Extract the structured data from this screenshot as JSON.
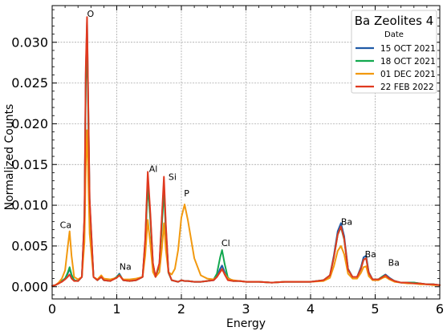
{
  "chart_data": {
    "type": "line",
    "legend": {
      "title": "Ba Zeolites 4",
      "subtitle": "Date",
      "position": "top-right"
    },
    "xlabel": "Energy",
    "ylabel": "Normalized Counts",
    "xlim": [
      0,
      6
    ],
    "ylim": [
      -0.0015,
      0.0345
    ],
    "grid": true,
    "x_ticks": [
      "0",
      "1",
      "2",
      "3",
      "4",
      "5",
      "6"
    ],
    "y_ticks": [
      "0.000",
      "0.005",
      "0.010",
      "0.015",
      "0.020",
      "0.025",
      "0.030"
    ],
    "annotations": [
      {
        "text": "O",
        "x": 0.54,
        "y": 0.0331
      },
      {
        "text": "Ca",
        "x": 0.12,
        "y": 0.0072
      },
      {
        "text": "Na",
        "x": 1.04,
        "y": 0.0021
      },
      {
        "text": "Al",
        "x": 1.5,
        "y": 0.0141
      },
      {
        "text": "Si",
        "x": 1.8,
        "y": 0.0131
      },
      {
        "text": "P",
        "x": 2.04,
        "y": 0.0111
      },
      {
        "text": "Cl",
        "x": 2.62,
        "y": 0.005
      },
      {
        "text": "Ba",
        "x": 4.47,
        "y": 0.0076
      },
      {
        "text": "Ba",
        "x": 4.84,
        "y": 0.0036
      },
      {
        "text": "Ba",
        "x": 5.2,
        "y": 0.0026
      }
    ],
    "series": [
      {
        "name": "15 OCT 2021",
        "color": "#1f5aa6",
        "x": [
          0.0,
          0.05,
          0.1,
          0.15,
          0.2,
          0.24,
          0.27,
          0.3,
          0.34,
          0.4,
          0.46,
          0.5,
          0.52,
          0.54,
          0.58,
          0.64,
          0.7,
          0.76,
          0.8,
          0.9,
          1.0,
          1.04,
          1.1,
          1.2,
          1.3,
          1.4,
          1.44,
          1.48,
          1.52,
          1.56,
          1.6,
          1.66,
          1.7,
          1.73,
          1.76,
          1.8,
          1.85,
          1.9,
          1.95,
          2.0,
          2.05,
          2.1,
          2.2,
          2.3,
          2.4,
          2.5,
          2.55,
          2.6,
          2.63,
          2.67,
          2.72,
          2.8,
          2.9,
          3.0,
          3.2,
          3.4,
          3.6,
          3.8,
          4.0,
          4.2,
          4.3,
          4.36,
          4.42,
          4.47,
          4.52,
          4.58,
          4.65,
          4.72,
          4.78,
          4.82,
          4.86,
          4.9,
          4.96,
          5.05,
          5.12,
          5.16,
          5.22,
          5.3,
          5.4,
          5.5,
          5.6,
          5.7,
          5.8,
          5.9,
          6.0
        ],
        "values": [
          0.0001,
          0.0002,
          0.0004,
          0.0007,
          0.001,
          0.0016,
          0.0022,
          0.0014,
          0.0008,
          0.0007,
          0.0012,
          0.0085,
          0.026,
          0.0325,
          0.0105,
          0.0012,
          0.0008,
          0.0012,
          0.0008,
          0.0007,
          0.0012,
          0.0016,
          0.0008,
          0.0007,
          0.0008,
          0.0012,
          0.0055,
          0.0132,
          0.0085,
          0.0028,
          0.0012,
          0.0028,
          0.0085,
          0.0125,
          0.0072,
          0.0018,
          0.0008,
          0.0007,
          0.0006,
          0.0008,
          0.0007,
          0.0007,
          0.0006,
          0.0006,
          0.0007,
          0.0008,
          0.0012,
          0.0022,
          0.0026,
          0.0018,
          0.0009,
          0.0007,
          0.0007,
          0.0006,
          0.0006,
          0.0005,
          0.0006,
          0.0006,
          0.0006,
          0.0008,
          0.0014,
          0.0038,
          0.0068,
          0.0078,
          0.0062,
          0.0022,
          0.0012,
          0.0012,
          0.0024,
          0.0036,
          0.0038,
          0.0018,
          0.0009,
          0.0009,
          0.0013,
          0.0015,
          0.0011,
          0.0007,
          0.0005,
          0.0005,
          0.0005,
          0.0004,
          0.0003,
          0.0003,
          0.0002
        ]
      },
      {
        "name": "18 OCT 2021",
        "color": "#12a84f",
        "x": [
          0.0,
          0.05,
          0.1,
          0.15,
          0.2,
          0.24,
          0.27,
          0.3,
          0.34,
          0.4,
          0.46,
          0.5,
          0.52,
          0.54,
          0.58,
          0.64,
          0.7,
          0.76,
          0.8,
          0.9,
          1.0,
          1.04,
          1.1,
          1.2,
          1.3,
          1.4,
          1.44,
          1.48,
          1.52,
          1.56,
          1.6,
          1.66,
          1.7,
          1.73,
          1.76,
          1.8,
          1.85,
          1.9,
          1.95,
          2.0,
          2.05,
          2.1,
          2.2,
          2.3,
          2.4,
          2.5,
          2.55,
          2.6,
          2.63,
          2.67,
          2.72,
          2.8,
          2.9,
          3.0,
          3.2,
          3.4,
          3.6,
          3.8,
          4.0,
          4.2,
          4.3,
          4.36,
          4.42,
          4.47,
          4.52,
          4.58,
          4.65,
          4.72,
          4.78,
          4.82,
          4.86,
          4.9,
          4.96,
          5.05,
          5.12,
          5.16,
          5.22,
          5.3,
          5.4,
          5.5,
          5.6,
          5.7,
          5.8,
          5.9,
          6.0
        ],
        "values": [
          0.0001,
          0.0002,
          0.0004,
          0.0007,
          0.001,
          0.0017,
          0.0024,
          0.0015,
          0.0008,
          0.0007,
          0.0012,
          0.0082,
          0.0245,
          0.0305,
          0.0098,
          0.0012,
          0.0008,
          0.0012,
          0.0008,
          0.0007,
          0.0012,
          0.0015,
          0.0008,
          0.0007,
          0.0008,
          0.0012,
          0.0052,
          0.0125,
          0.0082,
          0.0026,
          0.0012,
          0.0026,
          0.0078,
          0.0118,
          0.0068,
          0.0017,
          0.0008,
          0.0007,
          0.0006,
          0.0008,
          0.0007,
          0.0007,
          0.0006,
          0.0006,
          0.0007,
          0.0009,
          0.0016,
          0.0036,
          0.0045,
          0.0028,
          0.0011,
          0.0007,
          0.0007,
          0.0006,
          0.0006,
          0.0005,
          0.0006,
          0.0006,
          0.0006,
          0.0008,
          0.0014,
          0.0036,
          0.0064,
          0.0073,
          0.0058,
          0.0021,
          0.0012,
          0.0012,
          0.0022,
          0.0033,
          0.0035,
          0.0017,
          0.0009,
          0.0009,
          0.0013,
          0.0014,
          0.001,
          0.0007,
          0.0005,
          0.0005,
          0.0005,
          0.0004,
          0.0003,
          0.0003,
          0.0002
        ]
      },
      {
        "name": "01 DEC 2021",
        "color": "#f2990f",
        "x": [
          0.0,
          0.05,
          0.1,
          0.15,
          0.2,
          0.24,
          0.27,
          0.3,
          0.34,
          0.4,
          0.46,
          0.5,
          0.52,
          0.54,
          0.58,
          0.64,
          0.7,
          0.76,
          0.8,
          0.9,
          1.0,
          1.04,
          1.1,
          1.2,
          1.3,
          1.4,
          1.44,
          1.48,
          1.52,
          1.56,
          1.6,
          1.66,
          1.7,
          1.73,
          1.76,
          1.8,
          1.85,
          1.9,
          1.95,
          2.0,
          2.05,
          2.1,
          2.2,
          2.3,
          2.4,
          2.5,
          2.55,
          2.6,
          2.63,
          2.67,
          2.72,
          2.8,
          2.9,
          3.0,
          3.2,
          3.4,
          3.6,
          3.8,
          4.0,
          4.2,
          4.3,
          4.36,
          4.42,
          4.47,
          4.52,
          4.58,
          4.65,
          4.72,
          4.78,
          4.82,
          4.86,
          4.9,
          4.96,
          5.05,
          5.12,
          5.16,
          5.22,
          5.3,
          5.4,
          5.5,
          5.6,
          5.7,
          5.8,
          5.9,
          6.0
        ],
        "values": [
          0.0001,
          0.0002,
          0.0005,
          0.001,
          0.002,
          0.0048,
          0.0068,
          0.0038,
          0.0012,
          0.0009,
          0.0012,
          0.0055,
          0.0148,
          0.0192,
          0.0065,
          0.0012,
          0.0009,
          0.0014,
          0.001,
          0.0009,
          0.0011,
          0.0014,
          0.0009,
          0.0009,
          0.001,
          0.0012,
          0.0038,
          0.0082,
          0.0052,
          0.0018,
          0.0012,
          0.0018,
          0.0048,
          0.0078,
          0.0045,
          0.0018,
          0.0015,
          0.0022,
          0.0045,
          0.0085,
          0.0101,
          0.0082,
          0.0035,
          0.0014,
          0.001,
          0.0009,
          0.0012,
          0.0018,
          0.0021,
          0.0016,
          0.001,
          0.0008,
          0.0007,
          0.0006,
          0.0006,
          0.0005,
          0.0006,
          0.0006,
          0.0006,
          0.0007,
          0.0011,
          0.0025,
          0.0044,
          0.005,
          0.004,
          0.0016,
          0.001,
          0.001,
          0.0017,
          0.0024,
          0.0025,
          0.0013,
          0.0008,
          0.0008,
          0.0011,
          0.0012,
          0.0009,
          0.0006,
          0.0005,
          0.0004,
          0.0004,
          0.0003,
          0.0003,
          0.0002,
          0.0002
        ]
      },
      {
        "name": "22 FEB 2022",
        "color": "#e0391f",
        "x": [
          0.0,
          0.05,
          0.1,
          0.15,
          0.2,
          0.24,
          0.27,
          0.3,
          0.34,
          0.4,
          0.46,
          0.5,
          0.52,
          0.54,
          0.58,
          0.64,
          0.7,
          0.76,
          0.8,
          0.9,
          1.0,
          1.04,
          1.1,
          1.2,
          1.3,
          1.4,
          1.44,
          1.48,
          1.52,
          1.56,
          1.6,
          1.66,
          1.7,
          1.73,
          1.76,
          1.8,
          1.85,
          1.9,
          1.95,
          2.0,
          2.05,
          2.1,
          2.2,
          2.3,
          2.4,
          2.5,
          2.55,
          2.6,
          2.63,
          2.67,
          2.72,
          2.8,
          2.9,
          3.0,
          3.2,
          3.4,
          3.6,
          3.8,
          4.0,
          4.2,
          4.3,
          4.36,
          4.42,
          4.47,
          4.52,
          4.58,
          4.65,
          4.72,
          4.78,
          4.82,
          4.86,
          4.9,
          4.96,
          5.05,
          5.12,
          5.16,
          5.22,
          5.3,
          5.4,
          5.5,
          5.6,
          5.7,
          5.8,
          5.9,
          6.0
        ],
        "values": [
          0.0001,
          0.0002,
          0.0004,
          0.0006,
          0.0009,
          0.0012,
          0.0015,
          0.001,
          0.0007,
          0.0007,
          0.0012,
          0.0088,
          0.0268,
          0.0331,
          0.0108,
          0.0012,
          0.0008,
          0.0012,
          0.0008,
          0.0007,
          0.0011,
          0.0014,
          0.0008,
          0.0007,
          0.0008,
          0.0012,
          0.0058,
          0.0141,
          0.009,
          0.0029,
          0.0012,
          0.0029,
          0.0089,
          0.0135,
          0.0076,
          0.0018,
          0.0008,
          0.0007,
          0.0006,
          0.0008,
          0.0007,
          0.0007,
          0.0006,
          0.0006,
          0.0007,
          0.0008,
          0.0012,
          0.0018,
          0.0022,
          0.0015,
          0.0008,
          0.0007,
          0.0007,
          0.0006,
          0.0006,
          0.0005,
          0.0006,
          0.0006,
          0.0006,
          0.0008,
          0.0014,
          0.0036,
          0.0064,
          0.0074,
          0.0059,
          0.0021,
          0.0012,
          0.0012,
          0.0022,
          0.0033,
          0.0035,
          0.0017,
          0.0009,
          0.0009,
          0.0012,
          0.0014,
          0.001,
          0.0007,
          0.0005,
          0.0005,
          0.0004,
          0.0004,
          0.0003,
          0.0003,
          0.0002
        ]
      }
    ]
  }
}
